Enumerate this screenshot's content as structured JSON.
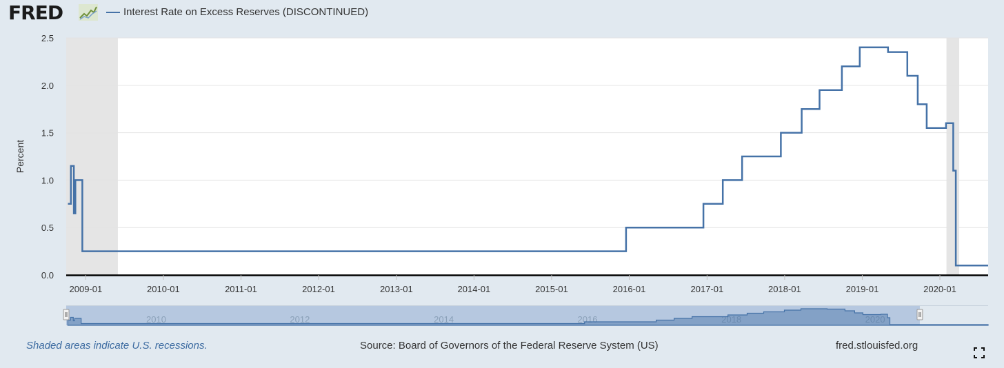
{
  "header": {
    "logo_text": "FRED",
    "legend_label": "Interest Rate on Excess Reserves (DISCONTINUED)"
  },
  "footer": {
    "recession_note": "Shaded areas indicate U.S. recessions.",
    "source": "Source: Board of Governors of the Federal Reserve System (US)",
    "site": "fred.stlouisfed.org"
  },
  "colors": {
    "line": "#4572a7",
    "recession": "#e5e5e5",
    "background": "#e1e9f0",
    "navigator_fill": "#b6c8e0"
  },
  "chart_data": {
    "type": "line",
    "title": "",
    "series": [
      {
        "name": "Interest Rate on Excess Reserves (DISCONTINUED)",
        "points": [
          [
            "2008-10-09",
            0.75
          ],
          [
            "2008-10-23",
            1.15
          ],
          [
            "2008-11-06",
            0.65
          ],
          [
            "2008-11-13",
            1.0
          ],
          [
            "2008-12-16",
            0.25
          ],
          [
            "2015-12-17",
            0.5
          ],
          [
            "2016-12-15",
            0.75
          ],
          [
            "2017-03-16",
            1.0
          ],
          [
            "2017-06-15",
            1.25
          ],
          [
            "2017-12-14",
            1.5
          ],
          [
            "2018-03-22",
            1.75
          ],
          [
            "2018-06-14",
            1.95
          ],
          [
            "2018-09-27",
            2.2
          ],
          [
            "2018-12-20",
            2.4
          ],
          [
            "2019-05-02",
            2.35
          ],
          [
            "2019-08-01",
            2.1
          ],
          [
            "2019-09-19",
            1.8
          ],
          [
            "2019-10-31",
            1.55
          ],
          [
            "2020-01-30",
            1.6
          ],
          [
            "2020-03-04",
            1.1
          ],
          [
            "2020-03-16",
            0.1
          ],
          [
            "2021-07-28",
            0.1
          ]
        ]
      }
    ],
    "xlabel": "",
    "ylabel": "Percent",
    "ylim": [
      0,
      2.5
    ],
    "xlim": [
      "2008-10-01",
      "2020-08-15"
    ],
    "yticks": [
      "0.0",
      "0.5",
      "1.0",
      "1.5",
      "2.0",
      "2.5"
    ],
    "xticks": [
      "2009-01",
      "2010-01",
      "2011-01",
      "2012-01",
      "2013-01",
      "2014-01",
      "2015-01",
      "2016-01",
      "2017-01",
      "2018-01",
      "2019-01",
      "2020-01"
    ],
    "recessions": [
      [
        "2008-10-01",
        "2009-06-01"
      ],
      [
        "2020-02-01",
        "2020-04-01"
      ]
    ],
    "navigator": {
      "labels": [
        "2010",
        "2012",
        "2014",
        "2016",
        "2018",
        "2020"
      ],
      "range": [
        "2008-10-01",
        "2021-07-28"
      ],
      "selected": [
        "2008-10-01",
        "2020-08-15"
      ]
    },
    "grid": true,
    "legend": "top-left"
  }
}
